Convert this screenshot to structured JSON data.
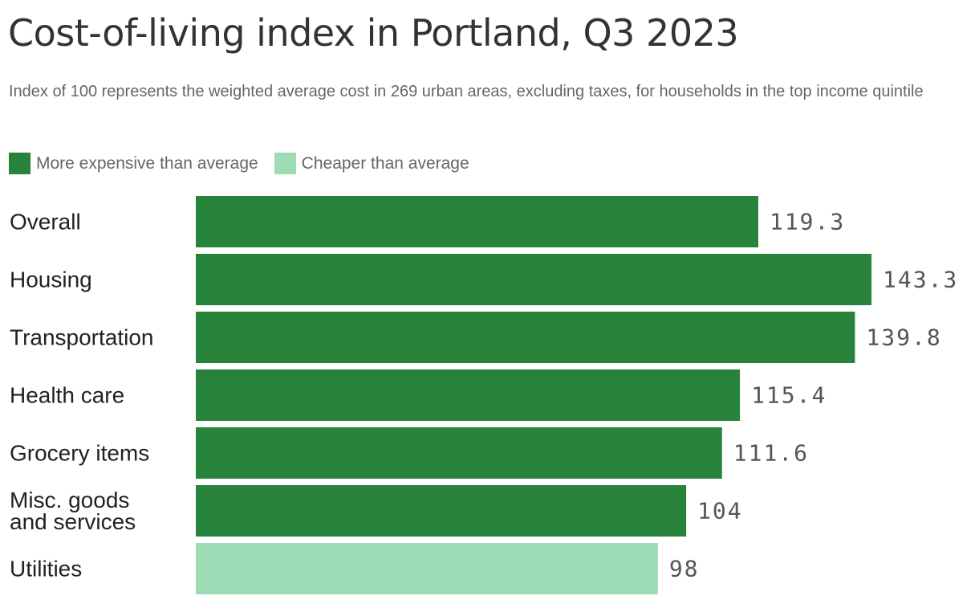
{
  "title": "Cost-of-living index in Portland, Q3 2023",
  "subtitle": "Index of 100 represents the weighted average cost in 269 urban areas, excluding taxes, for households in the top income quintile",
  "legend": [
    {
      "label": "More expensive than average",
      "color": "#27823a"
    },
    {
      "label": "Cheaper than average",
      "color": "#9edcb5"
    }
  ],
  "chart_data": {
    "type": "bar",
    "orientation": "horizontal",
    "title": "Cost-of-living index in Portland, Q3 2023",
    "subtitle": "Index of 100 represents the weighted average cost in 269 urban areas, excluding taxes, for households in the top income quintile",
    "categories": [
      "Overall",
      "Housing",
      "Transportation",
      "Health care",
      "Grocery items",
      "Misc. goods and services",
      "Utilities"
    ],
    "category_lines": [
      [
        "Overall"
      ],
      [
        "Housing"
      ],
      [
        "Transportation"
      ],
      [
        "Health care"
      ],
      [
        "Grocery items"
      ],
      [
        "Misc. goods",
        "and services"
      ],
      [
        "Utilities"
      ]
    ],
    "values": [
      119.3,
      143.3,
      139.8,
      115.4,
      111.6,
      104,
      98
    ],
    "value_labels": [
      "119.3",
      "143.3",
      "139.8",
      "115.4",
      "111.6",
      "104",
      "98"
    ],
    "colors": [
      "#27823a",
      "#27823a",
      "#27823a",
      "#27823a",
      "#27823a",
      "#27823a",
      "#9edcb5"
    ],
    "xlim": [
      0,
      143.3
    ],
    "grid": false,
    "legend_position": "top-left"
  }
}
